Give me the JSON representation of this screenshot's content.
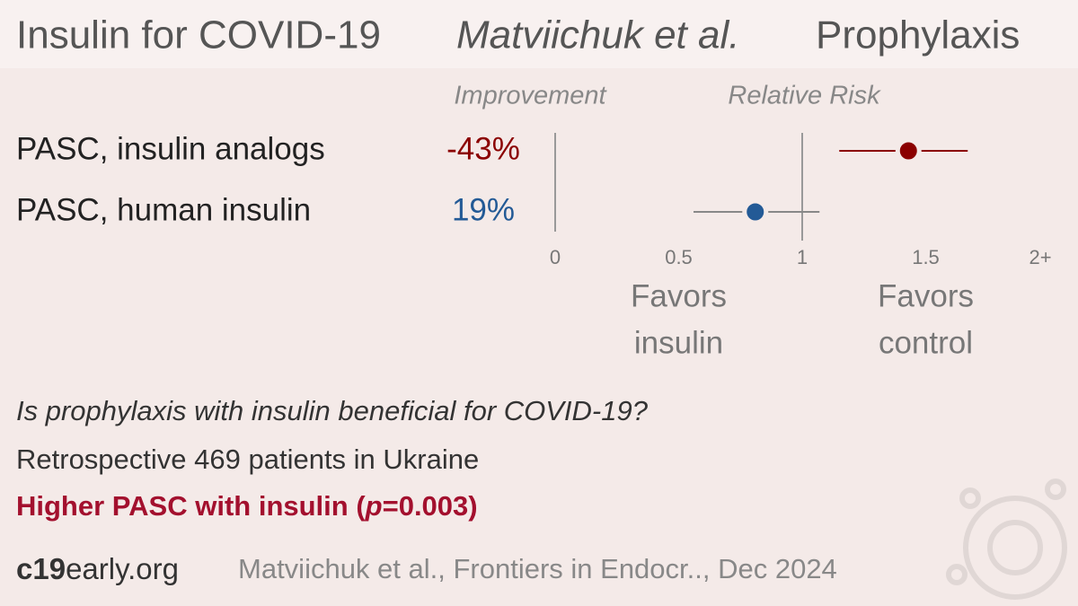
{
  "chart_data": {
    "type": "forest",
    "title": "Insulin for COVID-19",
    "author": "Matviichuk et al.",
    "setting": "Prophylaxis",
    "improvement_header": "Improvement",
    "effect_header": "Relative Risk",
    "categories": [
      "PASC, insulin analogs",
      "PASC, human insulin"
    ],
    "improvement": {
      "values": [
        -43,
        19
      ],
      "value_labels": [
        "-43%",
        "19%"
      ]
    },
    "series": [
      {
        "name": "Relative Risk",
        "values": [
          1.43,
          0.81
        ],
        "ci_low": [
          1.15,
          0.56
        ],
        "ci_high": [
          1.67,
          1.07
        ],
        "colors": [
          "#8b0000",
          "#235a96"
        ]
      }
    ],
    "xlim": [
      0,
      2
    ],
    "xticks": [
      0,
      0.5,
      1,
      1.5,
      {
        "value": 2,
        "label": "2+"
      }
    ],
    "left_label": [
      "Favors",
      "insulin"
    ],
    "right_label": [
      "Favors",
      "control"
    ],
    "question": "Is prophylaxis with insulin beneficial for COVID-19?",
    "design": "Retrospective 469 patients in Ukraine",
    "conclusion": [
      "Higher PASC with insulin (",
      "p",
      "=0.003)"
    ],
    "site": [
      "c19",
      "early.org"
    ],
    "citation": "Matviichuk et al., Frontiers in Endocr.., Dec 2024"
  }
}
